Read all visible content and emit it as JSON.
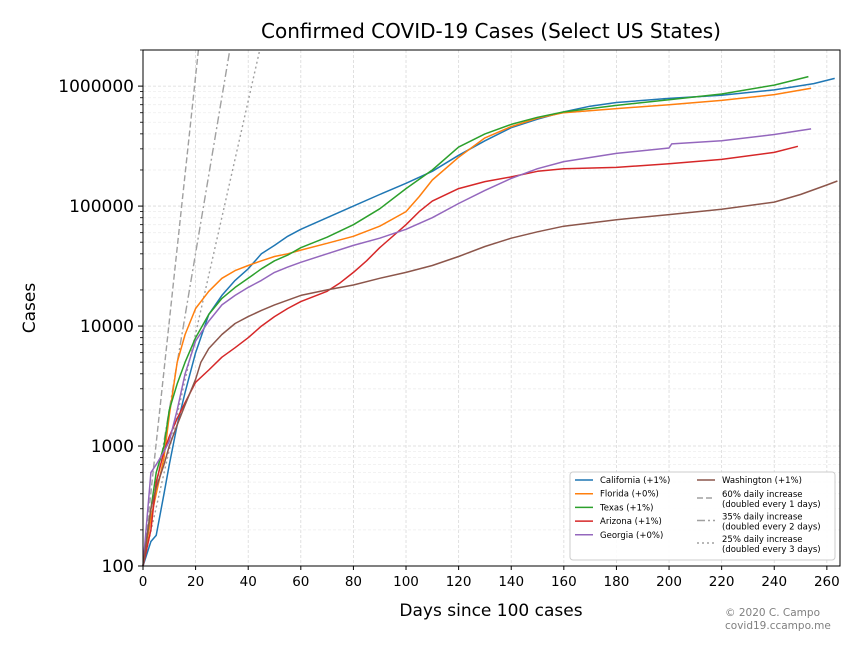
{
  "chart_data": {
    "type": "line",
    "title": "Confirmed COVID-19 Cases (Select US States)",
    "xlabel": "Days since 100 cases",
    "ylabel": "Cases",
    "xlim": [
      0,
      265
    ],
    "ylim": [
      100,
      2000000
    ],
    "yscale": "log",
    "grid": true,
    "legend_position": "bottom-right",
    "xticks": [
      "0",
      "20",
      "40",
      "60",
      "80",
      "100",
      "120",
      "140",
      "160",
      "180",
      "200",
      "220",
      "240",
      "260"
    ],
    "yticks": [
      "100",
      "1000",
      "10000",
      "100000",
      "1000000"
    ],
    "series": [
      {
        "name": "California (+1%)",
        "color": "#1f77b4",
        "x": [
          0,
          3,
          5,
          8,
          10,
          13,
          16,
          20,
          25,
          30,
          35,
          40,
          45,
          50,
          55,
          60,
          70,
          80,
          90,
          100,
          110,
          120,
          130,
          140,
          150,
          160,
          170,
          180,
          200,
          220,
          240,
          255,
          263
        ],
        "y": [
          100,
          160,
          180,
          400,
          700,
          1500,
          2800,
          6000,
          12500,
          18000,
          24000,
          30000,
          40000,
          47000,
          56000,
          64000,
          80000,
          100000,
          125000,
          155000,
          195000,
          265000,
          350000,
          450000,
          530000,
          610000,
          680000,
          730000,
          790000,
          840000,
          930000,
          1050000,
          1160000
        ]
      },
      {
        "name": "Florida (+0%)",
        "color": "#ff7f0e",
        "x": [
          0,
          3,
          5,
          8,
          10,
          13,
          16,
          20,
          25,
          30,
          35,
          40,
          45,
          50,
          55,
          60,
          70,
          80,
          90,
          100,
          105,
          110,
          120,
          130,
          140,
          150,
          160,
          180,
          200,
          220,
          240,
          254
        ],
        "y": [
          100,
          250,
          400,
          800,
          1800,
          5000,
          8500,
          14000,
          19500,
          25000,
          29000,
          32000,
          35000,
          38000,
          40000,
          43000,
          49000,
          56000,
          68000,
          90000,
          120000,
          165000,
          255000,
          370000,
          460000,
          540000,
          600000,
          650000,
          700000,
          760000,
          850000,
          960000
        ]
      },
      {
        "name": "Texas (+1%)",
        "color": "#2ca02c",
        "x": [
          0,
          3,
          5,
          8,
          10,
          13,
          16,
          20,
          25,
          30,
          35,
          40,
          45,
          50,
          55,
          60,
          70,
          80,
          90,
          100,
          110,
          120,
          130,
          140,
          150,
          160,
          180,
          200,
          220,
          240,
          253
        ],
        "y": [
          100,
          300,
          600,
          1000,
          2000,
          3300,
          5000,
          8000,
          12500,
          17000,
          21000,
          25000,
          30000,
          35000,
          39000,
          45000,
          55000,
          70000,
          95000,
          140000,
          200000,
          310000,
          400000,
          480000,
          550000,
          610000,
          690000,
          770000,
          860000,
          1020000,
          1200000
        ]
      },
      {
        "name": "Arizona (+1%)",
        "color": "#d62728",
        "x": [
          0,
          3,
          5,
          8,
          10,
          13,
          16,
          20,
          25,
          30,
          35,
          40,
          45,
          50,
          55,
          60,
          70,
          75,
          80,
          85,
          90,
          100,
          105,
          110,
          120,
          130,
          140,
          150,
          160,
          180,
          200,
          220,
          240,
          249
        ],
        "y": [
          100,
          200,
          500,
          900,
          1200,
          1700,
          2300,
          3400,
          4300,
          5500,
          6600,
          8000,
          10000,
          12000,
          14000,
          16000,
          19500,
          23000,
          28000,
          35000,
          45000,
          70000,
          90000,
          110000,
          140000,
          160000,
          175000,
          195000,
          205000,
          210000,
          225000,
          245000,
          280000,
          315000
        ]
      },
      {
        "name": "Georgia (+0%)",
        "color": "#9467bd",
        "x": [
          0,
          3,
          5,
          8,
          10,
          13,
          16,
          20,
          25,
          30,
          35,
          40,
          45,
          50,
          55,
          60,
          70,
          80,
          90,
          100,
          110,
          120,
          130,
          140,
          150,
          160,
          180,
          200,
          201,
          220,
          240,
          254
        ],
        "y": [
          100,
          600,
          700,
          900,
          1100,
          2000,
          4000,
          7500,
          11000,
          15000,
          18000,
          21000,
          24000,
          28000,
          31000,
          34000,
          40000,
          47000,
          54000,
          64000,
          80000,
          105000,
          135000,
          170000,
          205000,
          235000,
          275000,
          305000,
          330000,
          350000,
          395000,
          440000
        ]
      },
      {
        "name": "Washington (+1%)",
        "color": "#8c564b",
        "x": [
          0,
          3,
          5,
          8,
          10,
          13,
          16,
          20,
          22,
          25,
          30,
          35,
          40,
          45,
          50,
          60,
          70,
          80,
          90,
          100,
          110,
          120,
          130,
          140,
          150,
          160,
          180,
          200,
          220,
          240,
          250,
          260,
          264
        ],
        "y": [
          100,
          300,
          450,
          700,
          1000,
          1500,
          2200,
          3600,
          5000,
          6500,
          8500,
          10500,
          12000,
          13500,
          15000,
          18000,
          20000,
          22000,
          25000,
          28000,
          32000,
          38000,
          46000,
          54000,
          61000,
          68000,
          77000,
          85000,
          94000,
          108000,
          125000,
          150000,
          162000
        ]
      }
    ],
    "reference_lines": [
      {
        "name": "60% daily increase\n(doubled every 1 days)",
        "label_lines": [
          "60% daily increase",
          "(doubled every 1 days)"
        ],
        "rate": 0.6,
        "color": "#a0a0a0",
        "dash": "6,3"
      },
      {
        "name": "35% daily increase\n(doubled every 2 days)",
        "label_lines": [
          "35% daily increase",
          "(doubled every 2 days)"
        ],
        "rate": 0.35,
        "color": "#a0a0a0",
        "dash": "8,3,2,3"
      },
      {
        "name": "25% daily increase\n(doubled every 3 days)",
        "label_lines": [
          "25% daily increase",
          "(doubled every 3 days)"
        ],
        "rate": 0.25,
        "color": "#a0a0a0",
        "dash": "2,3"
      }
    ],
    "credit_lines": [
      "© 2020 C. Campo",
      "covid19.ccampo.me"
    ]
  }
}
